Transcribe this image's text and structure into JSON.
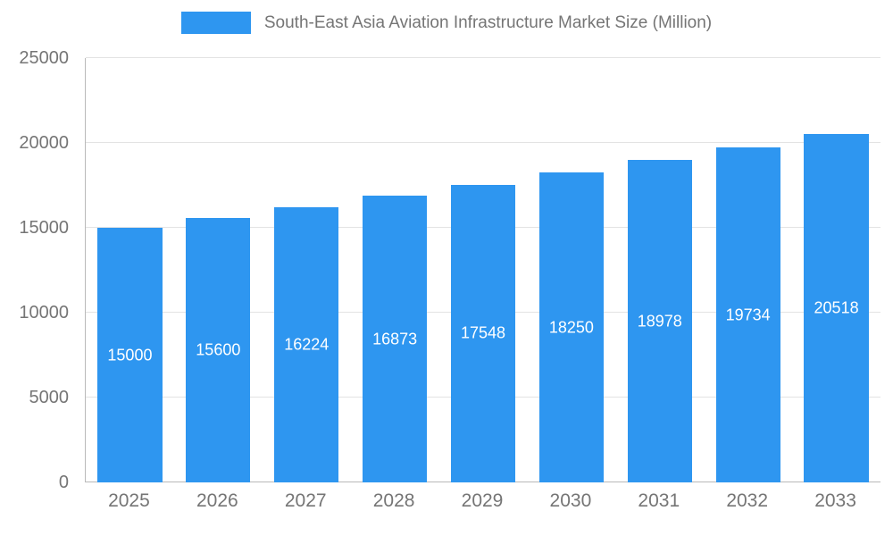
{
  "chart_data": {
    "type": "bar",
    "title": "South-East Asia Aviation Infrastructure Market Size (Million)",
    "categories": [
      "2025",
      "2026",
      "2027",
      "2028",
      "2029",
      "2030",
      "2031",
      "2032",
      "2033"
    ],
    "values": [
      15000,
      15600,
      16224,
      16873,
      17548,
      18250,
      18978,
      19734,
      20518
    ],
    "xlabel": "",
    "ylabel": "",
    "ylim": [
      0,
      25000
    ],
    "yticks": [
      0,
      5000,
      10000,
      15000,
      20000,
      25000
    ],
    "grid": true,
    "legend_position": "top",
    "bar_color": "#2e96f0",
    "value_label_color": "#ffffff",
    "axis_text_color": "#757575"
  }
}
